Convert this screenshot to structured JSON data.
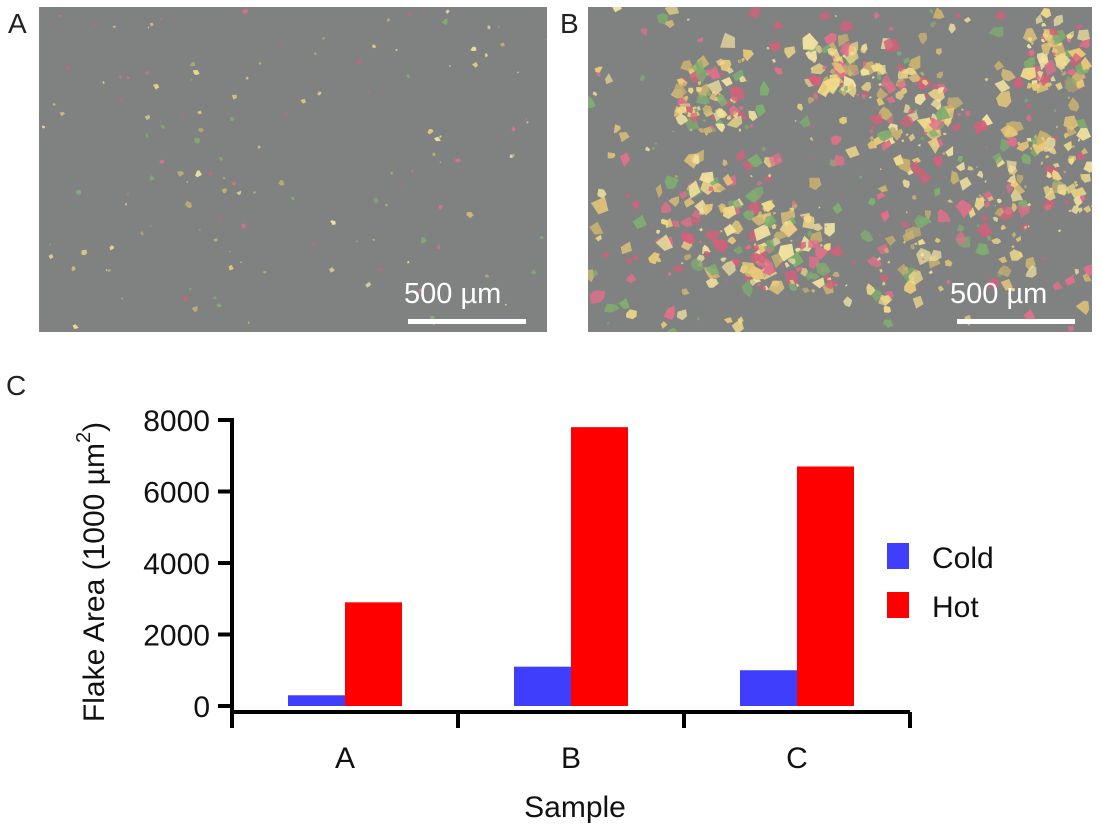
{
  "panels": {
    "a": {
      "letter": "A",
      "scale_label": "500 µm"
    },
    "b": {
      "letter": "B",
      "scale_label": "500 µm"
    },
    "c": {
      "letter": "C"
    }
  },
  "colors": {
    "cold": "#3e3efc",
    "hot": "#ff0000",
    "substrate": "#7f8280"
  },
  "chart_data": {
    "type": "bar",
    "categories": [
      "A",
      "B",
      "C"
    ],
    "series": [
      {
        "name": "Cold",
        "values": [
          300,
          1100,
          1000
        ]
      },
      {
        "name": "Hot",
        "values": [
          2900,
          7800,
          6700
        ]
      }
    ],
    "xlabel": "Sample",
    "ylabel": "Flake Area (1000 µm",
    "ylabel_superscript": "2",
    "ylabel_close": ")",
    "yticks": [
      0,
      2000,
      4000,
      6000,
      8000
    ],
    "ylim": [
      0,
      8000
    ],
    "grid": false,
    "legend_position": "right"
  }
}
